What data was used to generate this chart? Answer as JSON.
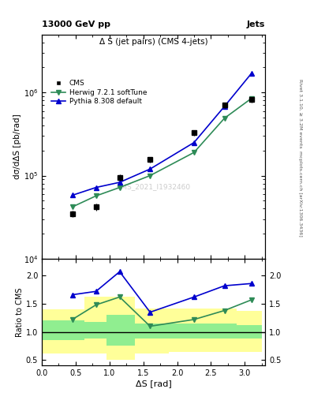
{
  "title_top": "13000 GeV pp",
  "title_right": "Jets",
  "plot_title": "Δ S (jet pairs) (CMS 4-jets)",
  "watermark": "CMS_2021_I1932460",
  "rivet_label": "Rivet 3.1.10, ≥ 3.2M events",
  "arxiv_label": "[arXiv:1306.3436]",
  "mcplots_label": "mcplots.cern.ch",
  "xlabel": "ΔS [rad]",
  "ylabel_main": "dσ/dΔS [pb/rad]",
  "ylabel_ratio": "Ratio to CMS",
  "cms_x": [
    0.45,
    0.8,
    1.15,
    1.6,
    2.25,
    2.7,
    3.1
  ],
  "cms_y": [
    35000,
    42000,
    95000,
    155000,
    330000,
    700000,
    820000
  ],
  "cms_yerr": [
    3000,
    4000,
    8000,
    12000,
    25000,
    55000,
    65000
  ],
  "herwig_x": [
    0.45,
    0.8,
    1.15,
    1.6,
    2.25,
    2.7,
    3.1
  ],
  "herwig_y": [
    42000,
    57000,
    72000,
    100000,
    190000,
    490000,
    850000
  ],
  "pythia_x": [
    0.45,
    0.8,
    1.15,
    1.6,
    2.25,
    2.7,
    3.1
  ],
  "pythia_y": [
    58000,
    72000,
    83000,
    120000,
    250000,
    680000,
    1700000
  ],
  "ratio_herwig_x": [
    0.45,
    0.8,
    1.15,
    1.6,
    2.25,
    2.7,
    3.1
  ],
  "ratio_herwig_y": [
    1.22,
    1.48,
    1.62,
    1.1,
    1.22,
    1.38,
    1.57
  ],
  "ratio_pythia_x": [
    0.45,
    0.8,
    1.15,
    1.6,
    2.25,
    2.7,
    3.1
  ],
  "ratio_pythia_y": [
    1.66,
    1.72,
    2.07,
    1.35,
    1.62,
    1.82,
    1.86
  ],
  "ratio_herwig_yerr": [
    0.04,
    0.04,
    0.04,
    0.04,
    0.04,
    0.04,
    0.04
  ],
  "ratio_pythia_yerr": [
    0.03,
    0.03,
    0.03,
    0.03,
    0.03,
    0.03,
    0.03
  ],
  "band_x_edges": [
    0.0,
    0.625,
    0.95,
    1.375,
    1.875,
    2.5,
    2.875,
    3.25
  ],
  "band_green_upper": [
    1.2,
    1.18,
    1.3,
    1.15,
    1.15,
    1.15,
    1.12
  ],
  "band_green_lower": [
    0.85,
    0.88,
    0.75,
    0.88,
    0.88,
    0.88,
    0.88
  ],
  "band_yellow_upper": [
    1.4,
    1.62,
    1.62,
    1.42,
    1.42,
    1.42,
    1.38
  ],
  "band_yellow_lower": [
    0.62,
    0.62,
    0.5,
    0.62,
    0.65,
    0.65,
    0.65
  ],
  "cms_color": "#000000",
  "herwig_color": "#2e8b57",
  "pythia_color": "#0000cd",
  "green_band_color": "#90ee90",
  "yellow_band_color": "#ffff99",
  "main_ylim": [
    10000,
    5000000
  ],
  "ratio_ylim": [
    0.4,
    2.3
  ],
  "ratio_yticks": [
    0.5,
    1.0,
    1.5,
    2.0
  ],
  "xlim": [
    0.0,
    3.3
  ],
  "xticks": [
    0.0,
    0.5,
    1.0,
    1.5,
    2.0,
    2.5,
    3.0
  ]
}
